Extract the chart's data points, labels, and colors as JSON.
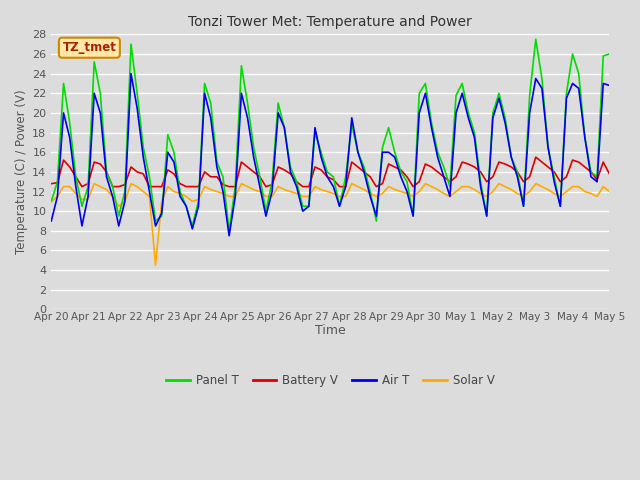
{
  "title": "Tonzi Tower Met: Temperature and Power",
  "xlabel": "Time",
  "ylabel": "Temperature (C) / Power (V)",
  "ylim": [
    0,
    28
  ],
  "yticks": [
    0,
    2,
    4,
    6,
    8,
    10,
    12,
    14,
    16,
    18,
    20,
    22,
    24,
    26,
    28
  ],
  "tz_label": "TZ_tmet",
  "legend_entries": [
    "Panel T",
    "Battery V",
    "Air T",
    "Solar V"
  ],
  "legend_colors": [
    "#00dd00",
    "#dd0000",
    "#0000ee",
    "#ffaa00"
  ],
  "bg_color": "#dcdcdc",
  "plot_bg_color": "#dcdcdc",
  "x_labels": [
    "Apr 20",
    "Apr 21",
    "Apr 22",
    "Apr 23",
    "Apr 24",
    "Apr 25",
    "Apr 26",
    "Apr 27",
    "Apr 28",
    "Apr 29",
    "Apr 30",
    "May 1",
    "May 2",
    "May 3",
    "May 4",
    "May 5"
  ],
  "panel_T": [
    11.0,
    13.0,
    23.0,
    19.0,
    13.5,
    10.5,
    12.5,
    25.2,
    22.0,
    14.0,
    12.5,
    9.5,
    12.0,
    27.0,
    22.0,
    16.5,
    13.5,
    9.0,
    9.5,
    17.8,
    16.0,
    12.0,
    10.5,
    8.5,
    11.0,
    23.0,
    21.0,
    15.0,
    13.5,
    8.0,
    12.5,
    24.8,
    21.0,
    16.5,
    13.5,
    10.0,
    13.0,
    21.0,
    18.5,
    14.5,
    13.0,
    10.5,
    10.5,
    18.0,
    16.0,
    14.0,
    13.5,
    10.5,
    13.5,
    18.8,
    16.0,
    14.5,
    12.0,
    9.0,
    16.5,
    18.5,
    16.0,
    14.0,
    13.0,
    9.5,
    22.0,
    23.0,
    19.0,
    16.0,
    14.5,
    12.5,
    21.8,
    23.0,
    20.0,
    18.0,
    13.0,
    9.5,
    20.0,
    22.0,
    19.5,
    15.5,
    14.0,
    10.5,
    21.8,
    27.5,
    23.5,
    16.5,
    13.5,
    10.5,
    22.0,
    26.0,
    24.0,
    17.5,
    14.0,
    13.5,
    25.8,
    26.0
  ],
  "battery_V": [
    12.8,
    12.9,
    15.2,
    14.5,
    13.5,
    12.5,
    12.8,
    15.0,
    14.8,
    14.0,
    12.5,
    12.5,
    12.7,
    14.5,
    14.0,
    13.8,
    12.5,
    12.5,
    12.5,
    14.2,
    13.8,
    12.8,
    12.5,
    12.5,
    12.5,
    14.0,
    13.5,
    13.5,
    12.7,
    12.5,
    12.5,
    15.0,
    14.5,
    14.0,
    13.5,
    12.5,
    12.7,
    14.5,
    14.2,
    13.8,
    13.0,
    12.5,
    12.5,
    14.5,
    14.2,
    13.5,
    13.2,
    12.5,
    12.5,
    15.0,
    14.5,
    14.0,
    13.5,
    12.5,
    12.8,
    14.8,
    14.5,
    14.2,
    13.5,
    12.5,
    13.0,
    14.8,
    14.5,
    14.0,
    13.5,
    13.0,
    13.5,
    15.0,
    14.8,
    14.5,
    14.0,
    13.0,
    13.5,
    15.0,
    14.8,
    14.5,
    14.0,
    13.0,
    13.5,
    15.5,
    15.0,
    14.5,
    14.0,
    13.0,
    13.5,
    15.2,
    15.0,
    14.5,
    14.0,
    13.2,
    15.0,
    13.8
  ],
  "air_T": [
    9.0,
    11.5,
    20.0,
    17.5,
    12.5,
    8.5,
    11.5,
    22.0,
    20.0,
    13.5,
    11.5,
    8.5,
    11.0,
    24.0,
    20.5,
    15.5,
    12.0,
    8.5,
    9.8,
    16.0,
    15.0,
    11.5,
    10.5,
    8.2,
    10.5,
    22.0,
    19.5,
    14.5,
    12.0,
    7.5,
    11.5,
    22.0,
    19.5,
    15.5,
    12.5,
    9.5,
    12.0,
    20.0,
    18.5,
    14.0,
    12.5,
    10.0,
    10.5,
    18.5,
    15.5,
    13.5,
    12.5,
    10.5,
    12.5,
    19.5,
    16.0,
    14.0,
    11.5,
    9.5,
    16.0,
    16.0,
    15.5,
    13.5,
    12.0,
    9.5,
    20.0,
    22.0,
    18.5,
    15.5,
    13.5,
    11.5,
    20.0,
    22.0,
    19.5,
    17.5,
    12.5,
    9.5,
    19.5,
    21.5,
    19.0,
    15.5,
    13.5,
    10.5,
    20.0,
    23.5,
    22.5,
    16.5,
    13.0,
    10.5,
    21.5,
    23.0,
    22.5,
    17.5,
    13.5,
    13.0,
    23.0,
    22.8
  ],
  "solar_V": [
    11.0,
    11.5,
    12.5,
    12.5,
    11.8,
    11.2,
    11.2,
    12.8,
    12.5,
    12.2,
    11.5,
    10.5,
    11.0,
    12.8,
    12.5,
    12.0,
    11.5,
    4.5,
    11.0,
    12.5,
    12.0,
    11.8,
    11.5,
    11.0,
    11.2,
    12.5,
    12.2,
    12.0,
    11.8,
    11.5,
    11.5,
    12.8,
    12.5,
    12.2,
    12.0,
    11.5,
    11.5,
    12.5,
    12.2,
    12.0,
    11.8,
    11.5,
    11.5,
    12.5,
    12.2,
    12.0,
    11.8,
    11.5,
    11.5,
    12.8,
    12.5,
    12.2,
    11.8,
    11.5,
    11.8,
    12.5,
    12.2,
    12.0,
    11.8,
    11.5,
    12.0,
    12.8,
    12.5,
    12.2,
    11.8,
    11.5,
    12.0,
    12.5,
    12.5,
    12.2,
    11.8,
    11.5,
    12.0,
    12.8,
    12.5,
    12.2,
    11.8,
    11.5,
    12.0,
    12.8,
    12.5,
    12.2,
    11.8,
    11.5,
    12.0,
    12.5,
    12.5,
    12.0,
    11.8,
    11.5,
    12.5,
    12.0
  ]
}
